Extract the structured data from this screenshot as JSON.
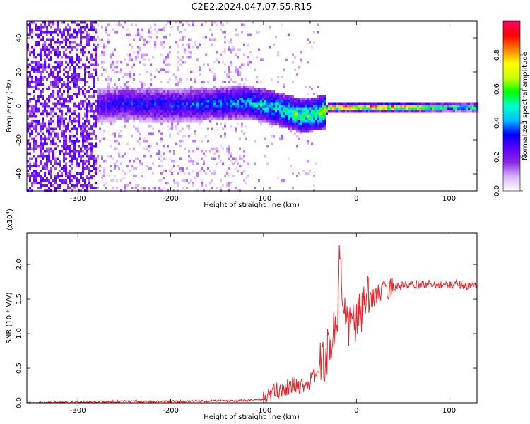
{
  "title": "C2E2.2024.047.07.55.R15",
  "chart_data": [
    {
      "type": "heatmap",
      "xlabel": "Height of straight line (km)",
      "ylabel": "Frequency (Hz)",
      "xlim": [
        -355,
        130
      ],
      "ylim": [
        -50,
        50
      ],
      "xticks": [
        -300,
        -200,
        -100,
        0,
        100
      ],
      "yticks": [
        -40,
        -20,
        0,
        20,
        40
      ],
      "colorbar": {
        "label": "Normalized spectral amplitude",
        "range": [
          0,
          1
        ],
        "ticks": [
          "0.0",
          "0.2",
          "0.4",
          "0.6",
          "0.8"
        ],
        "tick_values": [
          0.0,
          0.2,
          0.4,
          0.6,
          0.8
        ],
        "colors": [
          "#ffffff",
          "#d9b3ff",
          "#8a2be2",
          "#5a00ff",
          "#0000ff",
          "#00bfff",
          "#00ffcc",
          "#00ff00",
          "#ccff00",
          "#ffff00",
          "#ff8000",
          "#ff0000",
          "#ff0066"
        ]
      },
      "ridge": {
        "x": [
          -280,
          -250,
          -200,
          -150,
          -120,
          -100,
          -80,
          -60,
          -45,
          -35,
          -30,
          0,
          50,
          100,
          130
        ],
        "y": [
          1,
          2,
          1,
          2,
          3,
          1,
          -2,
          -5,
          -4,
          -3,
          0,
          0,
          0,
          0,
          0
        ],
        "amplitude": [
          0.3,
          0.35,
          0.35,
          0.4,
          0.45,
          0.5,
          0.55,
          0.6,
          0.6,
          0.7,
          0.85,
          0.9,
          0.9,
          0.6,
          0.6
        ]
      }
    },
    {
      "type": "line",
      "xlabel": "Height of straight line (km)",
      "ylabel": "SNR (10 * V/V)",
      "multiplier": "(x10",
      "multiplier_exp": "4",
      "multiplier_close": ")",
      "xlim": [
        -355,
        130
      ],
      "ylim": [
        0,
        2.45
      ],
      "xticks": [
        -300,
        -200,
        -100,
        0,
        100
      ],
      "yticks": [
        "0.0",
        "0.5",
        "1.0",
        "1.5",
        "2.0"
      ],
      "ytick_values": [
        0.0,
        0.5,
        1.0,
        1.5,
        2.0
      ],
      "color": "#e8262b",
      "series": [
        {
          "x": [
            -355,
            -300,
            -250,
            -200,
            -150,
            -120,
            -100,
            -90,
            -80,
            -70,
            -60,
            -50,
            -40,
            -30,
            -25,
            -20,
            -18,
            -15,
            -10,
            -5,
            0,
            5,
            10,
            20,
            30,
            40,
            60,
            80,
            100,
            110,
            120,
            130
          ],
          "values": [
            0.0,
            0.01,
            0.02,
            0.02,
            0.03,
            0.03,
            0.05,
            0.15,
            0.2,
            0.25,
            0.25,
            0.3,
            0.5,
            0.75,
            1.0,
            1.2,
            2.4,
            1.3,
            1.1,
            1.2,
            1.15,
            1.3,
            1.45,
            1.55,
            1.62,
            1.68,
            1.7,
            1.72,
            1.7,
            1.72,
            1.68,
            1.7
          ]
        }
      ]
    }
  ]
}
